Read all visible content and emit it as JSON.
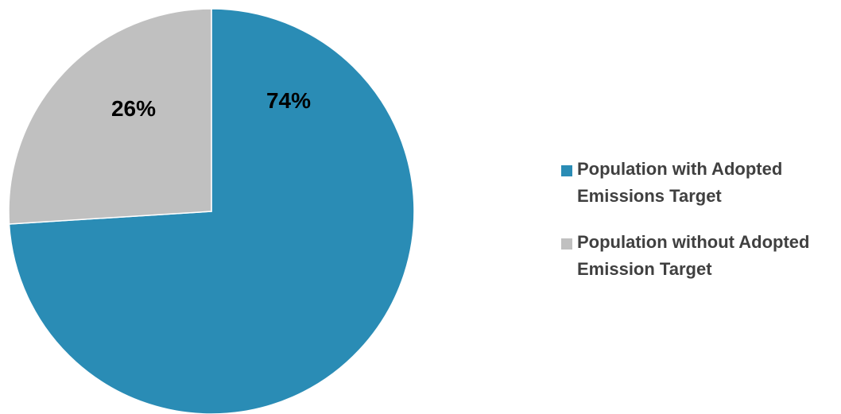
{
  "chart_data": {
    "type": "pie",
    "categories": [
      "Population with Adopted Emissions Target",
      "Population without Adopted Emission Target"
    ],
    "values": [
      74,
      26
    ],
    "data_labels": [
      "74%",
      "26%"
    ],
    "colors": [
      "#2a8cb5",
      "#c0c0c0"
    ],
    "legend_position": "right",
    "start_angle": "12 o'clock, clockwise"
  },
  "legend": {
    "items": [
      {
        "label": "Population with Adopted Emissions Target",
        "color": "#2a8cb5"
      },
      {
        "label": "Population without Adopted Emission Target",
        "color": "#c0c0c0"
      }
    ]
  }
}
